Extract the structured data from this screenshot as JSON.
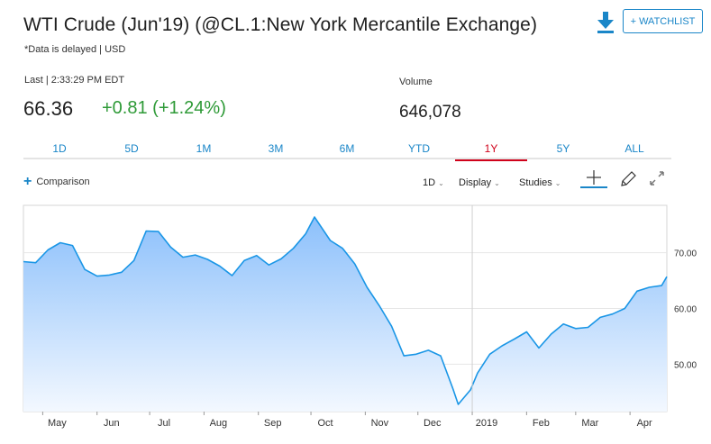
{
  "header": {
    "title": "WTI Crude (Jun'19) (@CL.1:New York Mercantile Exchange)",
    "subtitle": "*Data is delayed | USD",
    "watchlist_label": "+ WATCHLIST"
  },
  "quote": {
    "last_label": "Last | 2:33:29 PM EDT",
    "price": "66.36",
    "change": "+0.81 (+1.24%)",
    "volume_label": "Volume",
    "volume": "646,078"
  },
  "colors": {
    "accent": "#1a86c8",
    "positive": "#2e9a37",
    "active_tab": "#d0021b",
    "line": "#1a96e6",
    "fill_top": "#8cc0fb",
    "fill_bottom": "#f3f8ff"
  },
  "tabs": [
    {
      "label": "1D",
      "active": false
    },
    {
      "label": "5D",
      "active": false
    },
    {
      "label": "1M",
      "active": false
    },
    {
      "label": "3M",
      "active": false
    },
    {
      "label": "6M",
      "active": false
    },
    {
      "label": "YTD",
      "active": false
    },
    {
      "label": "1Y",
      "active": true
    },
    {
      "label": "5Y",
      "active": false
    },
    {
      "label": "ALL",
      "active": false
    }
  ],
  "controls": {
    "comparison_label": "Comparison",
    "interval_label": "1D",
    "display_label": "Display",
    "studies_label": "Studies",
    "icons": [
      "crosshair-icon",
      "draw-icon",
      "expand-icon"
    ]
  },
  "chart_data": {
    "type": "area",
    "title": "",
    "xlabel": "",
    "ylabel": "",
    "ylim": [
      41.5,
      78.5
    ],
    "yticks": [
      50,
      60,
      70
    ],
    "ytick_labels": [
      "50.00",
      "60.00",
      "70.00"
    ],
    "x_range": [
      "2018-04-20",
      "2019-04-22"
    ],
    "x_tick_labels": [
      {
        "label": "May",
        "date": "2018-05-01"
      },
      {
        "label": "Jun",
        "date": "2018-06-01"
      },
      {
        "label": "Jul",
        "date": "2018-07-01"
      },
      {
        "label": "Aug",
        "date": "2018-08-01"
      },
      {
        "label": "Sep",
        "date": "2018-09-01"
      },
      {
        "label": "Oct",
        "date": "2018-10-01"
      },
      {
        "label": "Nov",
        "date": "2018-11-01"
      },
      {
        "label": "Dec",
        "date": "2018-12-01"
      },
      {
        "label": "2019",
        "date": "2019-01-01"
      },
      {
        "label": "Feb",
        "date": "2019-02-01"
      },
      {
        "label": "Mar",
        "date": "2019-03-01"
      },
      {
        "label": "Apr",
        "date": "2019-04-01"
      }
    ],
    "separator_date": "2019-01-01",
    "grid": true,
    "series": [
      {
        "x": [
          "2018-04-20",
          "2018-04-27",
          "2018-05-04",
          "2018-05-11",
          "2018-05-18",
          "2018-05-25",
          "2018-06-01",
          "2018-06-08",
          "2018-06-15",
          "2018-06-22",
          "2018-06-29",
          "2018-07-06",
          "2018-07-13",
          "2018-07-20",
          "2018-07-27",
          "2018-08-03",
          "2018-08-10",
          "2018-08-17",
          "2018-08-24",
          "2018-08-31",
          "2018-09-07",
          "2018-09-14",
          "2018-09-21",
          "2018-09-28",
          "2018-10-03",
          "2018-10-12",
          "2018-10-19",
          "2018-10-26",
          "2018-11-02",
          "2018-11-09",
          "2018-11-16",
          "2018-11-23",
          "2018-11-30",
          "2018-12-07",
          "2018-12-14",
          "2018-12-21",
          "2018-12-24",
          "2018-12-31",
          "2019-01-04",
          "2019-01-11",
          "2019-01-18",
          "2019-01-25",
          "2019-02-01",
          "2019-02-08",
          "2019-02-15",
          "2019-02-22",
          "2019-03-01",
          "2019-03-08",
          "2019-03-15",
          "2019-03-22",
          "2019-03-29",
          "2019-04-05",
          "2019-04-12",
          "2019-04-19",
          "2019-04-22"
        ],
        "values": [
          68.4,
          68.2,
          70.5,
          71.8,
          71.3,
          67.0,
          65.8,
          66.0,
          66.5,
          68.6,
          73.9,
          73.8,
          71.0,
          69.2,
          69.6,
          68.8,
          67.6,
          65.9,
          68.6,
          69.5,
          67.8,
          68.9,
          70.8,
          73.4,
          76.4,
          72.2,
          70.8,
          68.0,
          63.8,
          60.5,
          56.8,
          51.5,
          51.8,
          52.5,
          51.5,
          45.6,
          42.8,
          45.4,
          48.4,
          51.8,
          53.3,
          54.5,
          55.8,
          52.9,
          55.4,
          57.2,
          56.4,
          56.6,
          58.4,
          59.0,
          60.0,
          63.1,
          63.8,
          64.1,
          65.7
        ]
      }
    ]
  }
}
